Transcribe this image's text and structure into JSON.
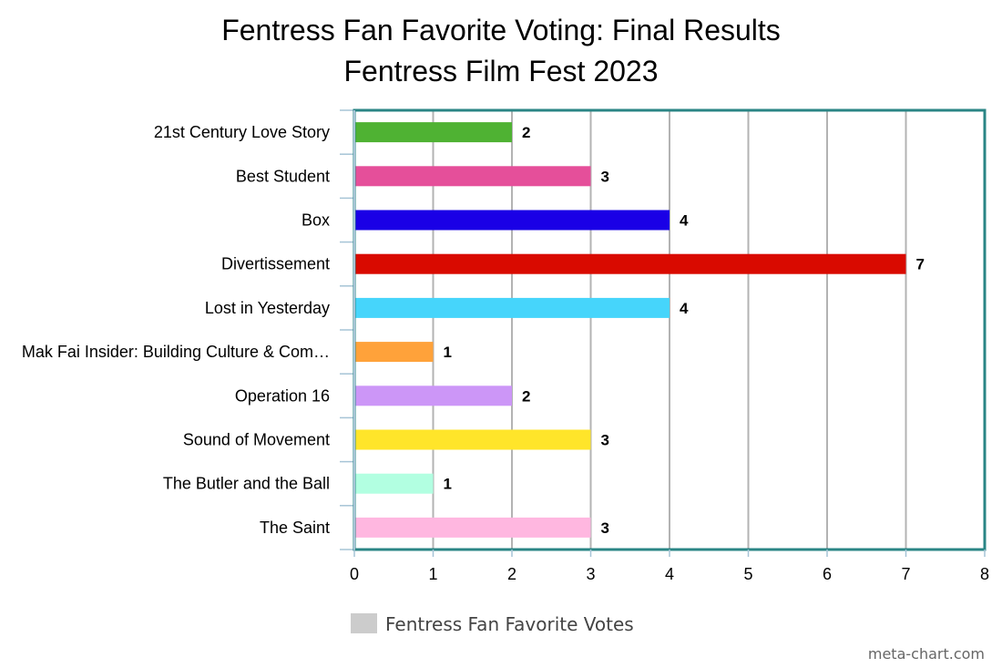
{
  "chart_data": {
    "type": "bar",
    "orientation": "horizontal",
    "title": "Fentress Fan Favorite Voting: Final Results",
    "subtitle": "Fentress Film Fest 2023",
    "categories": [
      "21st Century Love Story",
      "Best Student",
      "Box",
      "Divertissement",
      "Lost in Yesterday",
      "Mak Fai Insider: Building Culture & Com…",
      "Operation 16",
      "Sound of Movement",
      "The Butler and the Ball",
      "The Saint"
    ],
    "series": [
      {
        "name": "Fentress Fan Favorite Votes",
        "values": [
          2,
          3,
          4,
          7,
          4,
          1,
          2,
          3,
          1,
          3
        ]
      }
    ],
    "bar_colors": [
      "#4fb233",
      "#e54f9a",
      "#1a00e6",
      "#d90a00",
      "#46d5fb",
      "#ffa23a",
      "#cc96f7",
      "#ffe52a",
      "#b2ffe1",
      "#ffb7e0"
    ],
    "x_ticks": [
      "0",
      "1",
      "2",
      "3",
      "4",
      "5",
      "6",
      "7",
      "8"
    ],
    "xlim": [
      0,
      8
    ],
    "grid": true,
    "legend_position": "bottom",
    "legend_color": "#cccccc",
    "frame_color": "#2a8585"
  },
  "credit": "meta-chart.com"
}
